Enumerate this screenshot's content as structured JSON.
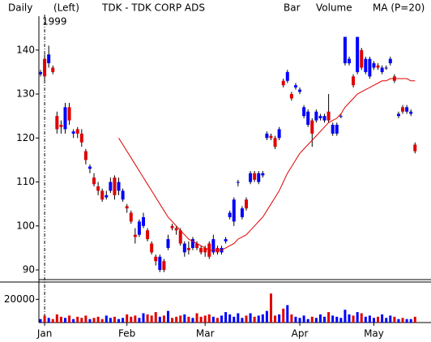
{
  "chart_data": {
    "type": "candlestick",
    "period": "Daily",
    "scale_label": "(Left)",
    "title": "TDK - TDK CORP ADS",
    "style_label": "Bar",
    "year_label": "1999",
    "up_color": "#0000ff",
    "down_color": "#e00000",
    "categories": [
      null,
      "Jan",
      null,
      null,
      null,
      null,
      null,
      null,
      null,
      null,
      null,
      null,
      null,
      null,
      null,
      null,
      null,
      null,
      null,
      null,
      null,
      "Feb",
      null,
      null,
      null,
      null,
      null,
      null,
      null,
      null,
      null,
      null,
      null,
      null,
      null,
      null,
      null,
      null,
      null,
      null,
      "Mar",
      null,
      null,
      null,
      null,
      null,
      null,
      null,
      null,
      null,
      null,
      null,
      null,
      null,
      null,
      null,
      null,
      null,
      null,
      null,
      null,
      null,
      null,
      "Apr",
      null,
      null,
      null,
      null,
      null,
      null,
      null,
      null,
      null,
      null,
      null,
      null,
      null,
      null,
      null,
      null,
      null,
      "May",
      null,
      null,
      null,
      null,
      null,
      null,
      null,
      null,
      null,
      null
    ],
    "open": [
      134.5,
      138,
      137,
      136,
      125,
      123,
      122,
      127,
      121,
      122,
      121,
      117,
      113,
      111,
      109,
      108,
      106.5,
      108,
      111,
      108,
      106,
      104.5,
      103,
      98,
      98,
      100,
      99,
      96,
      93,
      90,
      92,
      95,
      100,
      99.5,
      99,
      94,
      95,
      95,
      96,
      95,
      95,
      96,
      94,
      95,
      94,
      96.5,
      102,
      101,
      110,
      102,
      106,
      110,
      112,
      110,
      111.5,
      120,
      120.5,
      120,
      120,
      133,
      133,
      130,
      131.5,
      130.5,
      125,
      123,
      124,
      124,
      124.5,
      124,
      126,
      121,
      121,
      125,
      137,
      137,
      134,
      135,
      140,
      135,
      134,
      136,
      136.5,
      135,
      136,
      137,
      134,
      125,
      127,
      126,
      125.5,
      118.5
    ],
    "high": [
      135.5,
      139,
      141,
      136.5,
      126,
      124,
      128,
      128,
      122,
      122.5,
      122,
      117.5,
      114,
      112,
      110,
      108.5,
      108,
      111,
      111.5,
      111,
      108.5,
      105,
      103.5,
      99.5,
      101.5,
      103,
      99.5,
      96.5,
      93.5,
      93.5,
      92.5,
      98,
      100.5,
      100,
      99.5,
      96.5,
      96.5,
      97.5,
      96.5,
      95.5,
      95.5,
      96.5,
      98,
      95.5,
      95.5,
      97.5,
      103.5,
      106.5,
      110.5,
      104.5,
      106.5,
      112.5,
      112.5,
      112.5,
      112.5,
      121.5,
      121,
      120.5,
      122.5,
      133.5,
      135.5,
      130.5,
      132.5,
      131.5,
      127.5,
      126.5,
      124.5,
      126.5,
      125.5,
      125.5,
      130,
      123.5,
      123.5,
      125.5,
      143,
      138.5,
      134.5,
      143,
      140.5,
      138.5,
      138.5,
      137.5,
      137,
      136.5,
      136.5,
      138.5,
      134.5,
      126,
      127.5,
      127.5,
      126.5,
      119
    ],
    "low": [
      134,
      133,
      136,
      134.5,
      121,
      121,
      121,
      123,
      120,
      120,
      118,
      114,
      112,
      109,
      107,
      105.5,
      106,
      107.5,
      106,
      107,
      105.5,
      103,
      100.5,
      96,
      97.5,
      99.5,
      96.5,
      93.5,
      91,
      89.5,
      89.5,
      94.5,
      99,
      98,
      95.5,
      93,
      93.5,
      94.5,
      94.5,
      93.5,
      93,
      92.5,
      93.5,
      93.5,
      93.5,
      96,
      101.5,
      100,
      109,
      101.5,
      103.5,
      109.5,
      110,
      109.5,
      111,
      119.5,
      119.5,
      117.5,
      119.5,
      131.5,
      132.5,
      128.5,
      131,
      130,
      124.5,
      122.5,
      118,
      123.5,
      124,
      123.5,
      123.5,
      120.5,
      120.5,
      124.5,
      136.5,
      136.5,
      131.5,
      134.5,
      135.5,
      134.5,
      133.5,
      135.5,
      135.5,
      134.5,
      135.5,
      136.5,
      132.5,
      124.5,
      125.5,
      125.5,
      125,
      116.5
    ],
    "close": [
      135,
      134,
      139,
      135,
      122,
      122.5,
      127,
      124,
      121.5,
      121,
      119,
      115,
      113.5,
      109.5,
      108,
      106,
      107,
      110,
      107,
      110,
      108,
      104,
      101,
      97.5,
      101,
      102,
      97,
      94,
      92,
      93,
      90,
      97,
      99.5,
      99,
      96,
      96,
      94.5,
      97,
      95,
      94,
      94,
      93,
      97,
      94,
      95,
      97,
      103,
      106,
      110,
      104,
      104,
      112,
      110.5,
      112,
      112,
      121,
      120,
      118,
      122,
      132,
      135,
      129,
      132,
      131,
      127,
      126,
      121,
      126,
      125,
      125,
      124,
      123,
      123,
      125,
      143,
      138,
      132,
      143,
      136,
      138,
      138,
      137,
      136,
      136,
      136,
      138,
      133,
      125.5,
      126,
      127,
      126,
      117
    ],
    "ylim": [
      87.8,
      147.7
    ],
    "yticks": [
      90,
      100,
      110,
      120,
      130,
      140
    ],
    "ma": {
      "name": "MA (P=20)",
      "color": "#e00000",
      "values": [
        null,
        null,
        null,
        null,
        null,
        null,
        null,
        null,
        null,
        null,
        null,
        null,
        null,
        null,
        null,
        null,
        null,
        null,
        null,
        120,
        118.5,
        117,
        115.5,
        114,
        112.5,
        111,
        109.5,
        108,
        106.5,
        105,
        103.5,
        102,
        101,
        100,
        99,
        98,
        97,
        96.5,
        96,
        95.5,
        95,
        94.5,
        94.5,
        94.5,
        94.5,
        95,
        95.5,
        96,
        97,
        97.5,
        98,
        99,
        100,
        101,
        102,
        103.5,
        105,
        106.5,
        108,
        110,
        112,
        113.5,
        115,
        116.5,
        117.5,
        118.5,
        119.5,
        120.5,
        121.5,
        122.5,
        123.5,
        124,
        124.5,
        125.5,
        127,
        128,
        129,
        130,
        130.5,
        131,
        131.5,
        132,
        132.5,
        133,
        133,
        133.5,
        133.5,
        133.5,
        133.5,
        133.5,
        133,
        133
      ]
    },
    "volume": {
      "name": "Volume",
      "color": "#00c000",
      "values": [
        3000,
        6000,
        4000,
        3000,
        7000,
        5000,
        4000,
        6000,
        3000,
        5000,
        4000,
        6000,
        3000,
        4000,
        5000,
        3000,
        6000,
        4000,
        5000,
        3000,
        4000,
        7000,
        5000,
        6000,
        4000,
        8000,
        7000,
        6000,
        9000,
        5000,
        6000,
        10000,
        4000,
        5000,
        6000,
        7000,
        5000,
        4000,
        8000,
        5000,
        6000,
        7000,
        5000,
        4000,
        6000,
        9000,
        7000,
        5000,
        8000,
        4000,
        6000,
        8000,
        5000,
        6000,
        7000,
        10000,
        25000,
        6000,
        7000,
        12000,
        15000,
        7000,
        5000,
        4000,
        6000,
        3000,
        5000,
        4000,
        7000,
        5000,
        9000,
        6000,
        5000,
        4000,
        11000,
        7000,
        6000,
        9000,
        8000,
        5000,
        6000,
        4000,
        5000,
        7000,
        4000,
        6000,
        5000,
        3000,
        4000,
        3000,
        3000,
        5000
      ],
      "ylim": [
        0,
        33500
      ],
      "yticks": [
        20000
      ]
    }
  }
}
